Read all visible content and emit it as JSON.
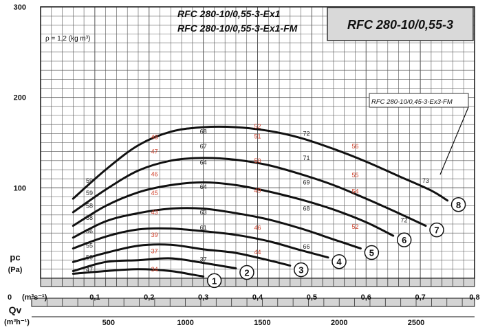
{
  "chart_data": {
    "type": "line",
    "title": "RFC 280-10/0,55-3",
    "models": [
      "RFC 280-10/0,55-3-Ex1",
      "RFC 280-10/0,55-3-Ex1-FM"
    ],
    "density_note": "ρ = 1,2 (kg m³)",
    "fm_limit_label": "RFC 280-10/0,45-3-Ex3-FM",
    "y_ticks": [
      "100",
      "200",
      "300"
    ],
    "x_ticks": [
      "0,1",
      "0,2",
      "0,3",
      "0,4",
      "0,5",
      "0,6",
      "0,7",
      "0,8"
    ],
    "x_zero": "0",
    "x_unit": "(m³s⁻¹)",
    "x2_ticks": [
      "500",
      "1000",
      "1500",
      "2000",
      "2500"
    ],
    "x2_unit": "(m³h⁻¹)",
    "ylabel": "pc",
    "ylabel_unit": "(Pa)",
    "xlabel": "Qv",
    "xlim": [
      0,
      0.8
    ],
    "ylim": [
      0,
      300
    ],
    "x2lim": [
      0,
      2880
    ],
    "colors": {
      "curve": "#111111",
      "grid": "#555555",
      "eff_black": "#222222",
      "eff_red": "#d0402a",
      "title_box": "#d9d9d9"
    },
    "series": [
      {
        "level": "1",
        "x": [
          0.06,
          0.12,
          0.18,
          0.24,
          0.28,
          0.3
        ],
        "y": [
          5,
          8,
          10,
          8,
          4,
          2
        ]
      },
      {
        "level": "2",
        "x": [
          0.06,
          0.12,
          0.18,
          0.24,
          0.3,
          0.36
        ],
        "y": [
          8,
          18,
          20,
          22,
          17,
          11
        ]
      },
      {
        "level": "3",
        "x": [
          0.06,
          0.12,
          0.18,
          0.24,
          0.3,
          0.36,
          0.42,
          0.46
        ],
        "y": [
          18,
          28,
          36,
          37,
          32,
          28,
          20,
          14
        ]
      },
      {
        "level": "4",
        "x": [
          0.06,
          0.12,
          0.18,
          0.24,
          0.3,
          0.36,
          0.42,
          0.48,
          0.53
        ],
        "y": [
          33,
          46,
          54,
          55,
          52,
          48,
          41,
          31,
          23
        ]
      },
      {
        "level": "5",
        "x": [
          0.06,
          0.12,
          0.18,
          0.24,
          0.3,
          0.36,
          0.42,
          0.48,
          0.54,
          0.59
        ],
        "y": [
          45,
          63,
          72,
          77,
          77,
          72,
          65,
          55,
          43,
          33
        ]
      },
      {
        "level": "6",
        "x": [
          0.06,
          0.12,
          0.18,
          0.24,
          0.3,
          0.36,
          0.42,
          0.48,
          0.54,
          0.6,
          0.65
        ],
        "y": [
          58,
          80,
          95,
          103,
          106,
          103,
          96,
          87,
          76,
          62,
          47
        ]
      },
      {
        "level": "7",
        "x": [
          0.06,
          0.12,
          0.18,
          0.24,
          0.3,
          0.36,
          0.42,
          0.48,
          0.54,
          0.6,
          0.66,
          0.71
        ],
        "y": [
          73,
          98,
          119,
          130,
          133,
          131,
          125,
          115,
          103,
          88,
          72,
          58
        ]
      },
      {
        "level": "8",
        "x": [
          0.06,
          0.12,
          0.18,
          0.24,
          0.3,
          0.36,
          0.42,
          0.48,
          0.54,
          0.6,
          0.66,
          0.72,
          0.75
        ],
        "y": [
          88,
          120,
          147,
          162,
          167,
          167,
          163,
          155,
          143,
          129,
          113,
          97,
          86
        ]
      }
    ],
    "efficiency_labels": [
      {
        "text": "47",
        "color": "black",
        "x": 0.09,
        "y": 10
      },
      {
        "text": "34",
        "color": "red",
        "x": 0.21,
        "y": 10
      },
      {
        "text": "50",
        "color": "black",
        "x": 0.09,
        "y": 23
      },
      {
        "text": "37",
        "color": "red",
        "x": 0.21,
        "y": 30
      },
      {
        "text": "37",
        "color": "black",
        "x": 0.3,
        "y": 21
      },
      {
        "text": "55",
        "color": "black",
        "x": 0.09,
        "y": 36
      },
      {
        "text": "39",
        "color": "red",
        "x": 0.21,
        "y": 48
      },
      {
        "text": "61",
        "color": "black",
        "x": 0.3,
        "y": 56
      },
      {
        "text": "44",
        "color": "red",
        "x": 0.4,
        "y": 29
      },
      {
        "text": "56",
        "color": "black",
        "x": 0.09,
        "y": 52
      },
      {
        "text": "43",
        "color": "red",
        "x": 0.21,
        "y": 73
      },
      {
        "text": "63",
        "color": "black",
        "x": 0.3,
        "y": 73
      },
      {
        "text": "46",
        "color": "red",
        "x": 0.4,
        "y": 56
      },
      {
        "text": "66",
        "color": "black",
        "x": 0.49,
        "y": 35
      },
      {
        "text": "58",
        "color": "black",
        "x": 0.09,
        "y": 67
      },
      {
        "text": "45",
        "color": "red",
        "x": 0.21,
        "y": 94
      },
      {
        "text": "64",
        "color": "black",
        "x": 0.3,
        "y": 101
      },
      {
        "text": "49",
        "color": "red",
        "x": 0.4,
        "y": 97
      },
      {
        "text": "68",
        "color": "black",
        "x": 0.49,
        "y": 77
      },
      {
        "text": "52",
        "color": "red",
        "x": 0.58,
        "y": 57
      },
      {
        "text": "58",
        "color": "black",
        "x": 0.09,
        "y": 80
      },
      {
        "text": "46",
        "color": "red",
        "x": 0.21,
        "y": 115
      },
      {
        "text": "64",
        "color": "black",
        "x": 0.3,
        "y": 128
      },
      {
        "text": "50",
        "color": "red",
        "x": 0.4,
        "y": 130
      },
      {
        "text": "69",
        "color": "black",
        "x": 0.49,
        "y": 106
      },
      {
        "text": "54",
        "color": "red",
        "x": 0.58,
        "y": 96
      },
      {
        "text": "72",
        "color": "black",
        "x": 0.67,
        "y": 64
      },
      {
        "text": "59",
        "color": "black",
        "x": 0.09,
        "y": 94
      },
      {
        "text": "47",
        "color": "red",
        "x": 0.21,
        "y": 140
      },
      {
        "text": "67",
        "color": "black",
        "x": 0.3,
        "y": 146
      },
      {
        "text": "51",
        "color": "red",
        "x": 0.4,
        "y": 157
      },
      {
        "text": "71",
        "color": "black",
        "x": 0.49,
        "y": 133
      },
      {
        "text": "55",
        "color": "red",
        "x": 0.58,
        "y": 114
      },
      {
        "text": "59",
        "color": "black",
        "x": 0.09,
        "y": 108
      },
      {
        "text": "48",
        "color": "red",
        "x": 0.21,
        "y": 156
      },
      {
        "text": "68",
        "color": "black",
        "x": 0.3,
        "y": 162
      },
      {
        "text": "52",
        "color": "red",
        "x": 0.4,
        "y": 168
      },
      {
        "text": "72",
        "color": "black",
        "x": 0.49,
        "y": 160
      },
      {
        "text": "56",
        "color": "red",
        "x": 0.58,
        "y": 146
      },
      {
        "text": "73",
        "color": "black",
        "x": 0.71,
        "y": 108
      }
    ],
    "grid": true
  }
}
